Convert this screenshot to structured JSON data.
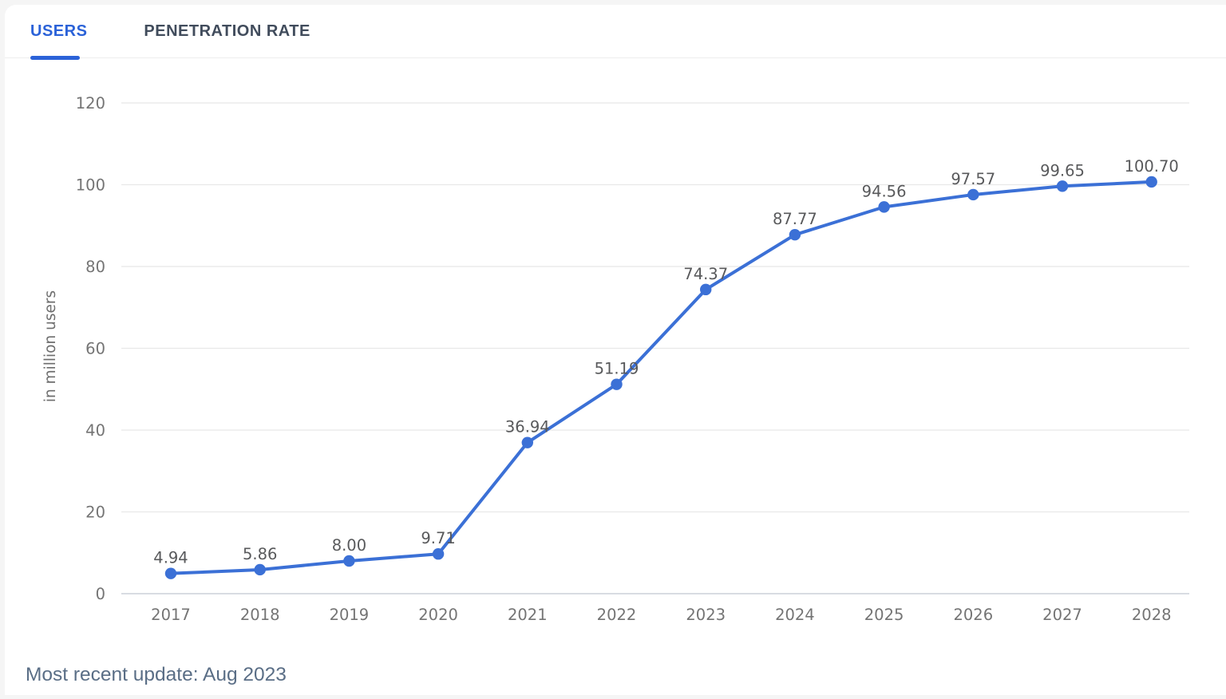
{
  "tabs": [
    {
      "label": "USERS",
      "active": true
    },
    {
      "label": "PENETRATION RATE",
      "active": false
    }
  ],
  "footer": {
    "update_text": "Most recent update: Aug 2023"
  },
  "chart_data": {
    "type": "line",
    "title": "",
    "xlabel": "",
    "ylabel": "in million users",
    "x": [
      2017,
      2018,
      2019,
      2020,
      2021,
      2022,
      2023,
      2024,
      2025,
      2026,
      2027,
      2028
    ],
    "values": [
      4.94,
      5.86,
      8.0,
      9.71,
      36.94,
      51.19,
      74.37,
      87.77,
      94.56,
      97.57,
      99.65,
      100.7
    ],
    "point_labels": [
      "4.94",
      "5.86",
      "8.00",
      "9.71",
      "36.94",
      "51.19",
      "74.37",
      "87.77",
      "94.56",
      "97.57",
      "99.65",
      "100.70"
    ],
    "yticks": [
      0,
      20,
      40,
      60,
      80,
      100,
      120
    ],
    "ylim": [
      0,
      120
    ],
    "grid": true,
    "legend": "none",
    "series_name": "Users"
  },
  "colors": {
    "accent_blue": "#2b62d8",
    "line_blue": "#3b70d6",
    "tab_inactive": "#414c5c",
    "gridline": "#e8e8e8",
    "axis_line": "#ccd0d8",
    "tick_text": "#747474",
    "axis_title": "#6d6d6d",
    "data_label": "#58595b",
    "footer_text": "#5a6e86",
    "page_bg": "#f5f5f5",
    "card_bg": "#ffffff",
    "tabbar_border": "#ededed"
  }
}
